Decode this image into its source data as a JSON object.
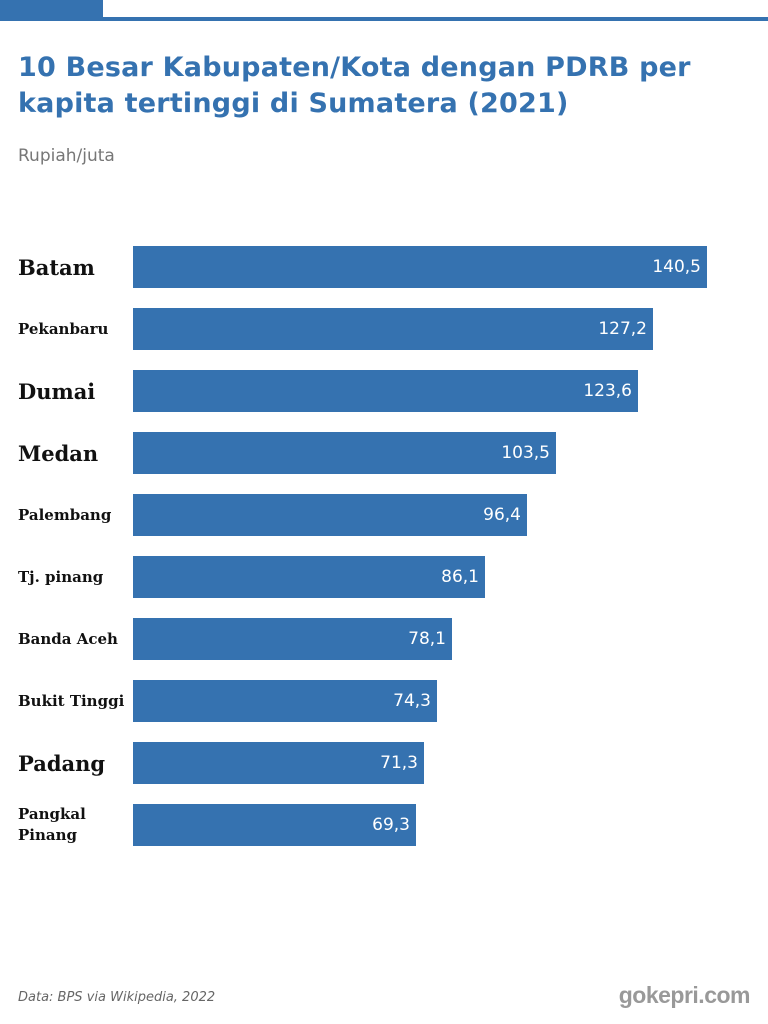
{
  "header": {
    "title": "10 Besar Kabupaten/Kota dengan PDRB per kapita tertinggi di Sumatera (2021)",
    "unit": "Rupiah/juta",
    "accent_color": "#3572b0"
  },
  "footer": {
    "source": "Data: BPS via Wikipedia, 2022",
    "brand": "gokepri.com"
  },
  "chart_data": {
    "type": "bar",
    "orientation": "horizontal",
    "title": "10 Besar Kabupaten/Kota dengan PDRB per kapita tertinggi di Sumatera (2021)",
    "subtitle": "Rupiah/juta",
    "xlabel": "",
    "ylabel": "",
    "grid": false,
    "legend": null,
    "bar_color": "#3572b0",
    "categories": [
      "Batam",
      "Pekanbaru",
      "Dumai",
      "Medan",
      "Palembang",
      "Tj. pinang",
      "Banda Aceh",
      "Bukit Tinggi",
      "Padang",
      "Pangkal Pinang"
    ],
    "values": [
      140.5,
      127.2,
      123.6,
      103.5,
      96.4,
      86.1,
      78.1,
      74.3,
      71.3,
      69.3
    ],
    "value_labels": [
      "140,5",
      "127,2",
      "123,6",
      "103,5",
      "96,4",
      "86,1",
      "78,1",
      "74,3",
      "71,3",
      "69,3"
    ],
    "source": "Data: BPS via Wikipedia, 2022"
  }
}
